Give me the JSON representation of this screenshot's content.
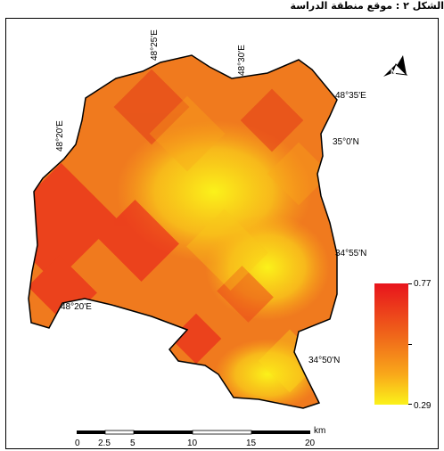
{
  "header_text": "الشكل ٢ : موقع منطقة الدراسة",
  "graticule": {
    "lon_48_25": "48°25'E",
    "lon_48_30": "48°30'E",
    "lon_48_35": "48°35'E",
    "lon_48_20_top": "48°20'E",
    "lon_48_20_left": "48°20'E",
    "lat_35_0": "35°0'N",
    "lat_34_55": "34°55'N",
    "lat_34_50": "34°50'N"
  },
  "legend": {
    "max_label": "0.77",
    "min_label": "0.29",
    "max_value": 0.77,
    "min_value": 0.29,
    "colors": [
      "#e8141c",
      "#f06a1a",
      "#f9a81a",
      "#fbf21a"
    ]
  },
  "scale_bar": {
    "unit": "km",
    "ticks": [
      "0",
      "2.5",
      "5",
      "10",
      "15",
      "20"
    ]
  },
  "north_arrow": "north-arrow-icon"
}
